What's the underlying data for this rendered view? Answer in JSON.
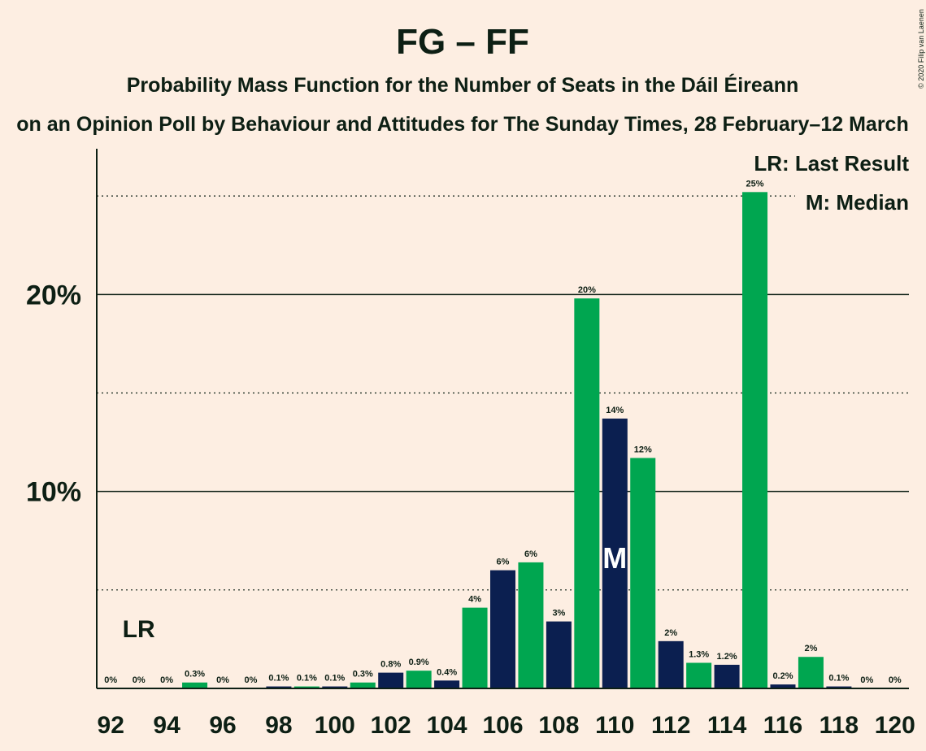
{
  "chart_data": {
    "type": "bar",
    "title": "FG – FF",
    "subtitle": "Probability Mass Function for the Number of Seats in the Dáil Éireann",
    "subtitle2": "on an Opinion Poll by Behaviour and Attitudes for The Sunday Times, 28 February–12 March",
    "copyright": "© 2020 Filip van Laenen",
    "x": [
      92,
      93,
      94,
      95,
      96,
      97,
      98,
      99,
      100,
      101,
      102,
      103,
      104,
      105,
      106,
      107,
      108,
      109,
      110,
      111,
      112,
      113,
      114,
      115,
      116,
      117,
      118,
      119,
      120
    ],
    "values": [
      0,
      0,
      0,
      0.3,
      0,
      0,
      0.1,
      0.1,
      0.1,
      0.3,
      0.8,
      0.9,
      0.4,
      4.1,
      6,
      6.4,
      3.4,
      19.8,
      13.7,
      11.7,
      2.4,
      1.3,
      1.2,
      25.2,
      0.2,
      1.6,
      0.1,
      0,
      0
    ],
    "value_labels": [
      "0%",
      "0%",
      "0%",
      "0.3%",
      "0%",
      "0%",
      "0.1%",
      "0.1%",
      "0.1%",
      "0.3%",
      "0.8%",
      "0.9%",
      "0.4%",
      "4%",
      "6%",
      "6%",
      "3%",
      "20%",
      "14%",
      "12%",
      "2%",
      "1.3%",
      "1.2%",
      "25%",
      "0.2%",
      "2%",
      "0.1%",
      "0%",
      "0%"
    ],
    "colors": [
      "#0b1f50",
      "#00a650",
      "#0b1f50",
      "#00a650",
      "#0b1f50",
      "#00a650",
      "#0b1f50",
      "#00a650",
      "#0b1f50",
      "#00a650",
      "#0b1f50",
      "#00a650",
      "#0b1f50",
      "#00a650",
      "#0b1f50",
      "#00a650",
      "#0b1f50",
      "#00a650",
      "#0b1f50",
      "#00a650",
      "#0b1f50",
      "#00a650",
      "#0b1f50",
      "#00a650",
      "#0b1f50",
      "#00a650",
      "#0b1f50",
      "#00a650",
      "#0b1f50"
    ],
    "xlim": [
      91.5,
      120.5
    ],
    "xticks": [
      92,
      94,
      96,
      98,
      100,
      102,
      104,
      106,
      108,
      110,
      112,
      114,
      116,
      118,
      120
    ],
    "ylim": [
      0,
      27.4
    ],
    "yticks": [
      {
        "value": 10,
        "label": "10%"
      },
      {
        "value": 20,
        "label": "20%"
      }
    ],
    "minor_yticks": [
      5,
      15,
      25
    ],
    "grid": true,
    "last_result": {
      "x": 93,
      "label": "LR"
    },
    "median": {
      "x": 110,
      "label": "M"
    },
    "legend": [
      "LR: Last Result",
      "M: Median"
    ]
  }
}
